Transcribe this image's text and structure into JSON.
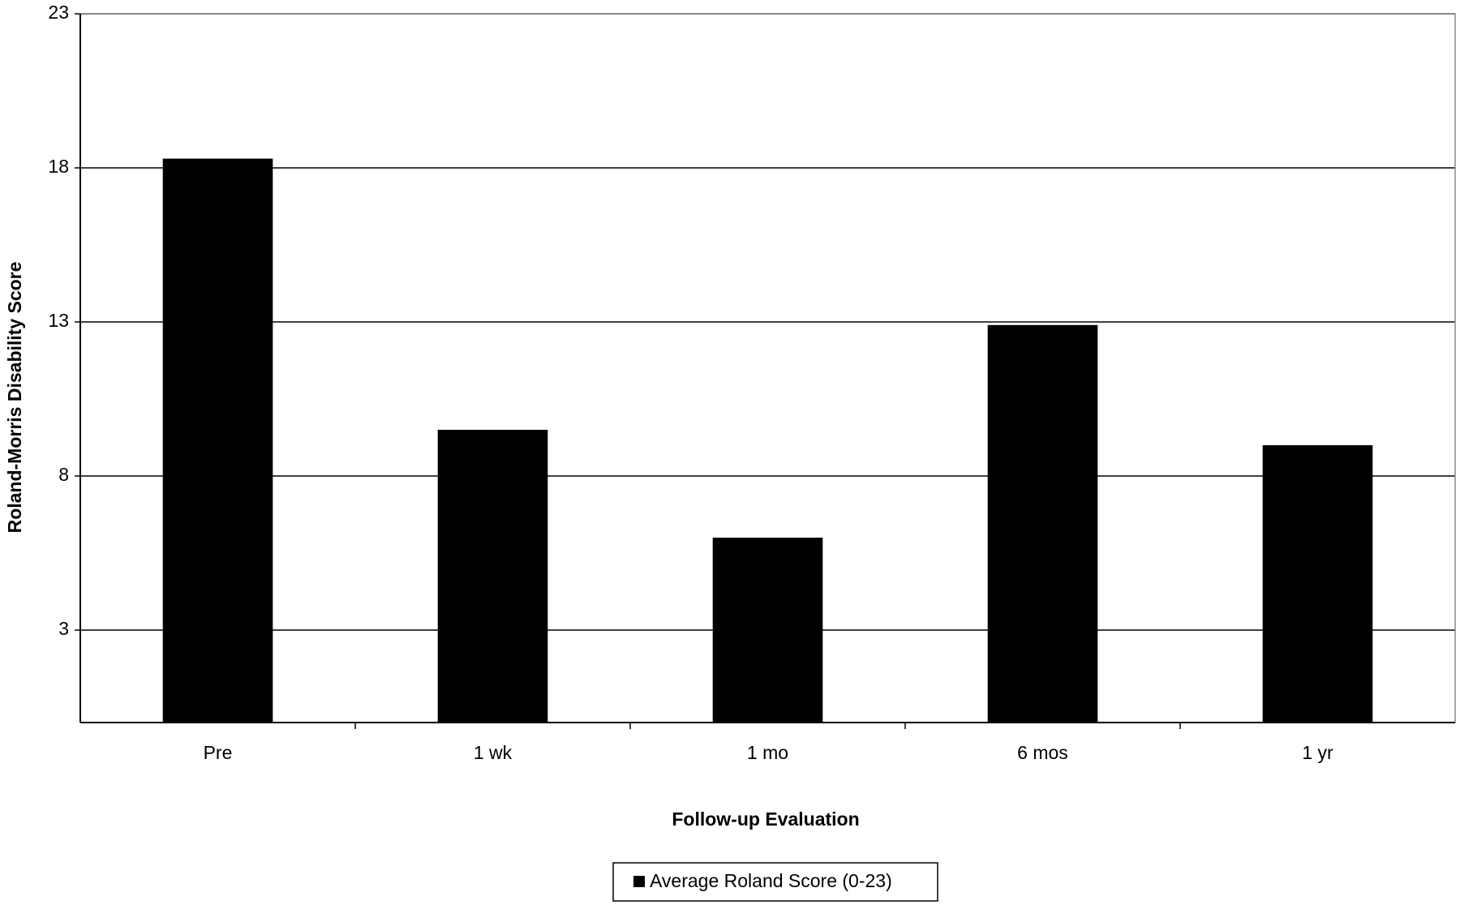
{
  "chart_data": {
    "type": "bar",
    "x_label": "Follow-up Evaluation",
    "y_label": "Roland-Morris Disability Score",
    "categories": [
      "Pre",
      "1 wk",
      "1 mo",
      "6 mos",
      "1 yr"
    ],
    "series": [
      {
        "name": "Average Roland Score (0-23)",
        "color": "#000000",
        "values": [
          18.3,
          9.5,
          6.0,
          12.9,
          9.0
        ]
      }
    ],
    "ylim": [
      0,
      23
    ],
    "yticks": [
      3,
      8,
      13,
      18,
      23
    ],
    "grid": true,
    "legend": "bottom"
  }
}
